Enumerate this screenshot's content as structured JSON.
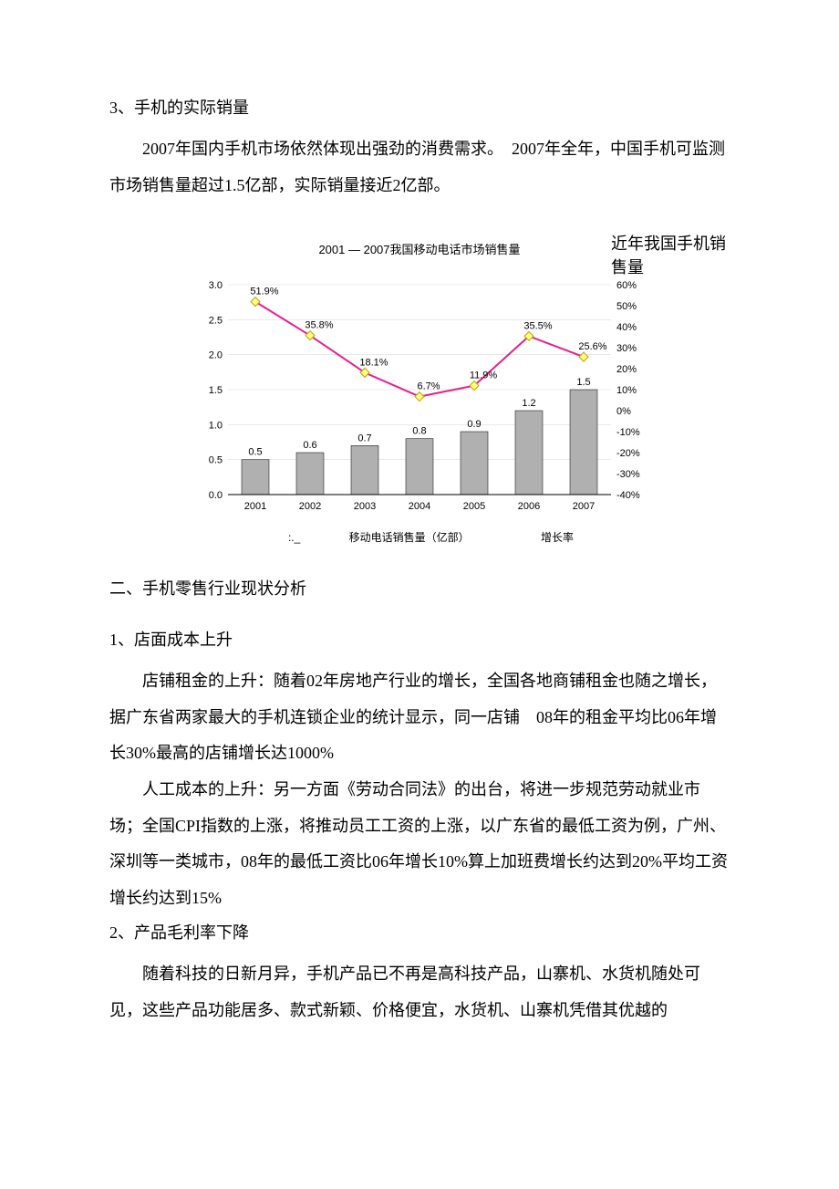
{
  "section3": {
    "heading": "3、手机的实际销量",
    "p1": "2007年国内手机市场依然体现出强劲的消费需求。　2007年全年，中国手机可监测市场销售量超过1.5亿部，实际销量接近2亿部。"
  },
  "chart": {
    "type": "bar+line",
    "title": "2001 — 2007我国移动电话市场销售量",
    "side_label": "近年我国手机销售量",
    "categories": [
      "2001",
      "2002",
      "2003",
      "2004",
      "2005",
      "2006",
      "2007"
    ],
    "bar_values": [
      0.5,
      0.6,
      0.7,
      0.8,
      0.9,
      1.2,
      1.5
    ],
    "line_values": [
      51.9,
      35.8,
      18.1,
      6.7,
      11.9,
      35.5,
      25.6
    ],
    "line_labels": [
      "51.9%",
      "35.8%",
      "18.1%",
      "6.7%",
      "11.9%",
      "35.5%",
      "25.6%"
    ],
    "y1_lim": [
      0.0,
      3.0
    ],
    "y1_step": 0.5,
    "y1_ticks": [
      "0.0",
      "0.5",
      "1.0",
      "1.5",
      "2.0",
      "2.5",
      "3.0"
    ],
    "y2_lim": [
      -40,
      60
    ],
    "y2_step": 10,
    "y2_ticks": [
      "-40%",
      "-30%",
      "-20%",
      "-10%",
      "0%",
      "10%",
      "20%",
      "30%",
      "40%",
      "50%",
      "60%"
    ],
    "bar_color": "#b0b0b0",
    "line_color": "#e91e8c",
    "marker_fill": "#ffff80",
    "marker_stroke": "#c0a000",
    "grid_color": "#dcdcdc",
    "background_color": "#ffffff",
    "bar_width_ratio": 0.5,
    "legend": {
      "bars": "移动电话销售量（亿部）",
      "line": "增长率",
      "bar_prefix": ":._"
    }
  },
  "section2": {
    "heading": "二、手机零售行业现状分析",
    "sub1": {
      "heading": "1、店面成本上升",
      "p1": "店铺租金的上升：随着02年房地产行业的增长，全国各地商铺租金也随之增长，据广东省两家最大的手机连锁企业的统计显示，同一店铺　08年的租金平均比06年增长30%最高的店铺增长达1000%",
      "p2": "人工成本的上升：另一方面《劳动合同法》的出台，将进一步规范劳动就业市场；全国CPI指数的上涨，将推动员工工资的上涨，以广东省的最低工资为例，广州、深圳等一类城市，08年的最低工资比06年增长10%算上加班费增长约达到20%平均工资增长约达到15%"
    },
    "sub2": {
      "heading": "2、产品毛利率下降",
      "p1": "随着科技的日新月异，手机产品已不再是高科技产品，山寨机、水货机随处可见，这些产品功能居多、款式新颖、价格便宜，水货机、山寨机凭借其优越的"
    }
  }
}
